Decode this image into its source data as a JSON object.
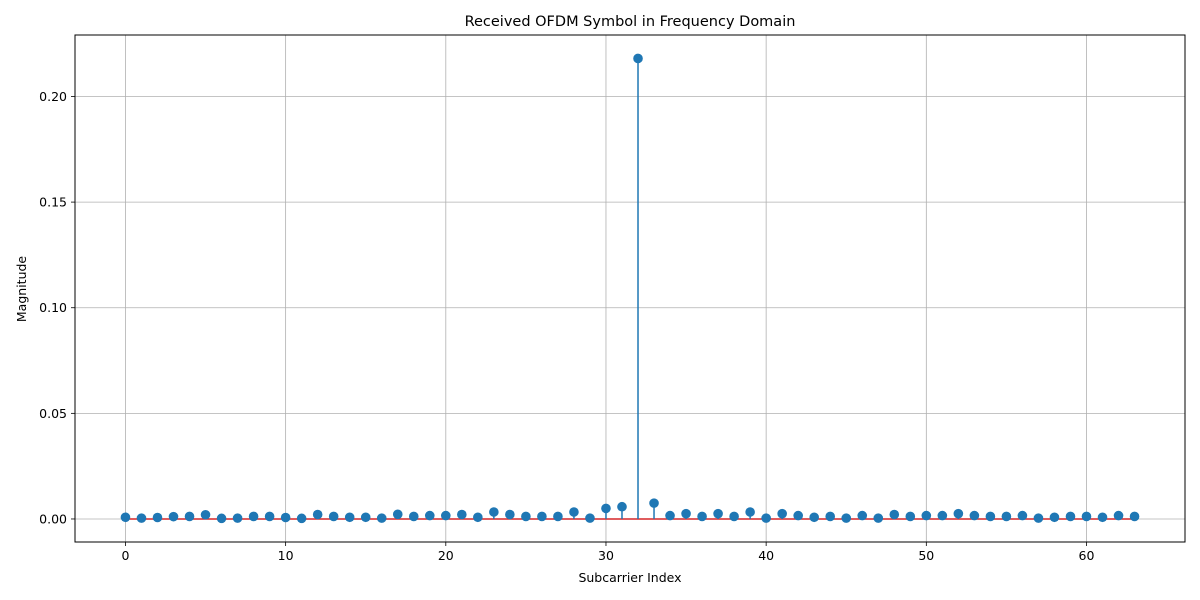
{
  "chart_data": {
    "type": "stem",
    "title": "Received OFDM Symbol in Frequency Domain",
    "xlabel": "Subcarrier Index",
    "ylabel": "Magnitude",
    "xlim": [
      -3.15,
      66.15
    ],
    "ylim": [
      -0.0109,
      0.2291
    ],
    "xticks": [
      0,
      10,
      20,
      30,
      40,
      50,
      60
    ],
    "xtick_labels": [
      "0",
      "10",
      "20",
      "30",
      "40",
      "50",
      "60"
    ],
    "yticks": [
      0.0,
      0.05,
      0.1,
      0.15,
      0.2
    ],
    "ytick_labels": [
      "0.00",
      "0.05",
      "0.10",
      "0.15",
      "0.20"
    ],
    "grid": true,
    "baseline": 0,
    "x": [
      0,
      1,
      2,
      3,
      4,
      5,
      6,
      7,
      8,
      9,
      10,
      11,
      12,
      13,
      14,
      15,
      16,
      17,
      18,
      19,
      20,
      21,
      22,
      23,
      24,
      25,
      26,
      27,
      28,
      29,
      30,
      31,
      32,
      33,
      34,
      35,
      36,
      37,
      38,
      39,
      40,
      41,
      42,
      43,
      44,
      45,
      46,
      47,
      48,
      49,
      50,
      51,
      52,
      53,
      54,
      55,
      56,
      57,
      58,
      59,
      60,
      61,
      62,
      63
    ],
    "values": [
      0.0008,
      0.0004,
      0.0007,
      0.0011,
      0.0012,
      0.002,
      0.0003,
      0.0004,
      0.0012,
      0.0012,
      0.0007,
      0.0003,
      0.0021,
      0.0012,
      0.0008,
      0.0008,
      0.0004,
      0.0022,
      0.0012,
      0.0016,
      0.0016,
      0.0021,
      0.0008,
      0.0033,
      0.0021,
      0.0012,
      0.0012,
      0.0012,
      0.0033,
      0.0004,
      0.005,
      0.0058,
      0.218,
      0.0075,
      0.0016,
      0.0025,
      0.0012,
      0.0025,
      0.0012,
      0.0033,
      0.0004,
      0.0025,
      0.0016,
      0.0008,
      0.0012,
      0.0004,
      0.0016,
      0.0004,
      0.0021,
      0.0012,
      0.0016,
      0.0016,
      0.0025,
      0.0016,
      0.0012,
      0.0012,
      0.0016,
      0.0004,
      0.0008,
      0.0012,
      0.0012,
      0.0008,
      0.0016,
      0.0012
    ],
    "colors": {
      "stem": "#1f77b4",
      "baseline": "#d62728",
      "grid": "#b0b0b0",
      "axes": "#000000"
    }
  }
}
